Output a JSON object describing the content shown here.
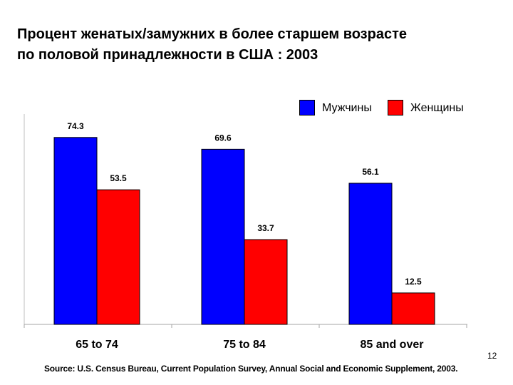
{
  "slide": {
    "title_line1": "Процент женатых/замужних в более старшем возрасте",
    "title_line2": "по половой принадлежности в США : 2003",
    "source": "Source: U.S. Census Bureau, Current Population Survey, Annual Social and Economic Supplement, 2003.",
    "page_number": "12"
  },
  "chart_data": {
    "type": "bar",
    "title": "Процент женатых/замужних в более старшем возрасте по половой принадлежности в США : 2003",
    "categories": [
      "65 to 74",
      "75 to 84",
      "85 and over"
    ],
    "series": [
      {
        "name": "Мужчины",
        "values": [
          74.3,
          69.6,
          56.1
        ],
        "color": "#0000FF"
      },
      {
        "name": "Женщины",
        "values": [
          53.5,
          33.7,
          12.5
        ],
        "color": "#FF0000"
      }
    ],
    "value_labels": [
      [
        "74.3",
        "69.6",
        "56.1"
      ],
      [
        "53.5",
        "33.7",
        "12.5"
      ]
    ],
    "xlabel": "",
    "ylabel": "",
    "ylim": [
      0,
      85
    ],
    "grid": false,
    "legend": "top-right"
  }
}
